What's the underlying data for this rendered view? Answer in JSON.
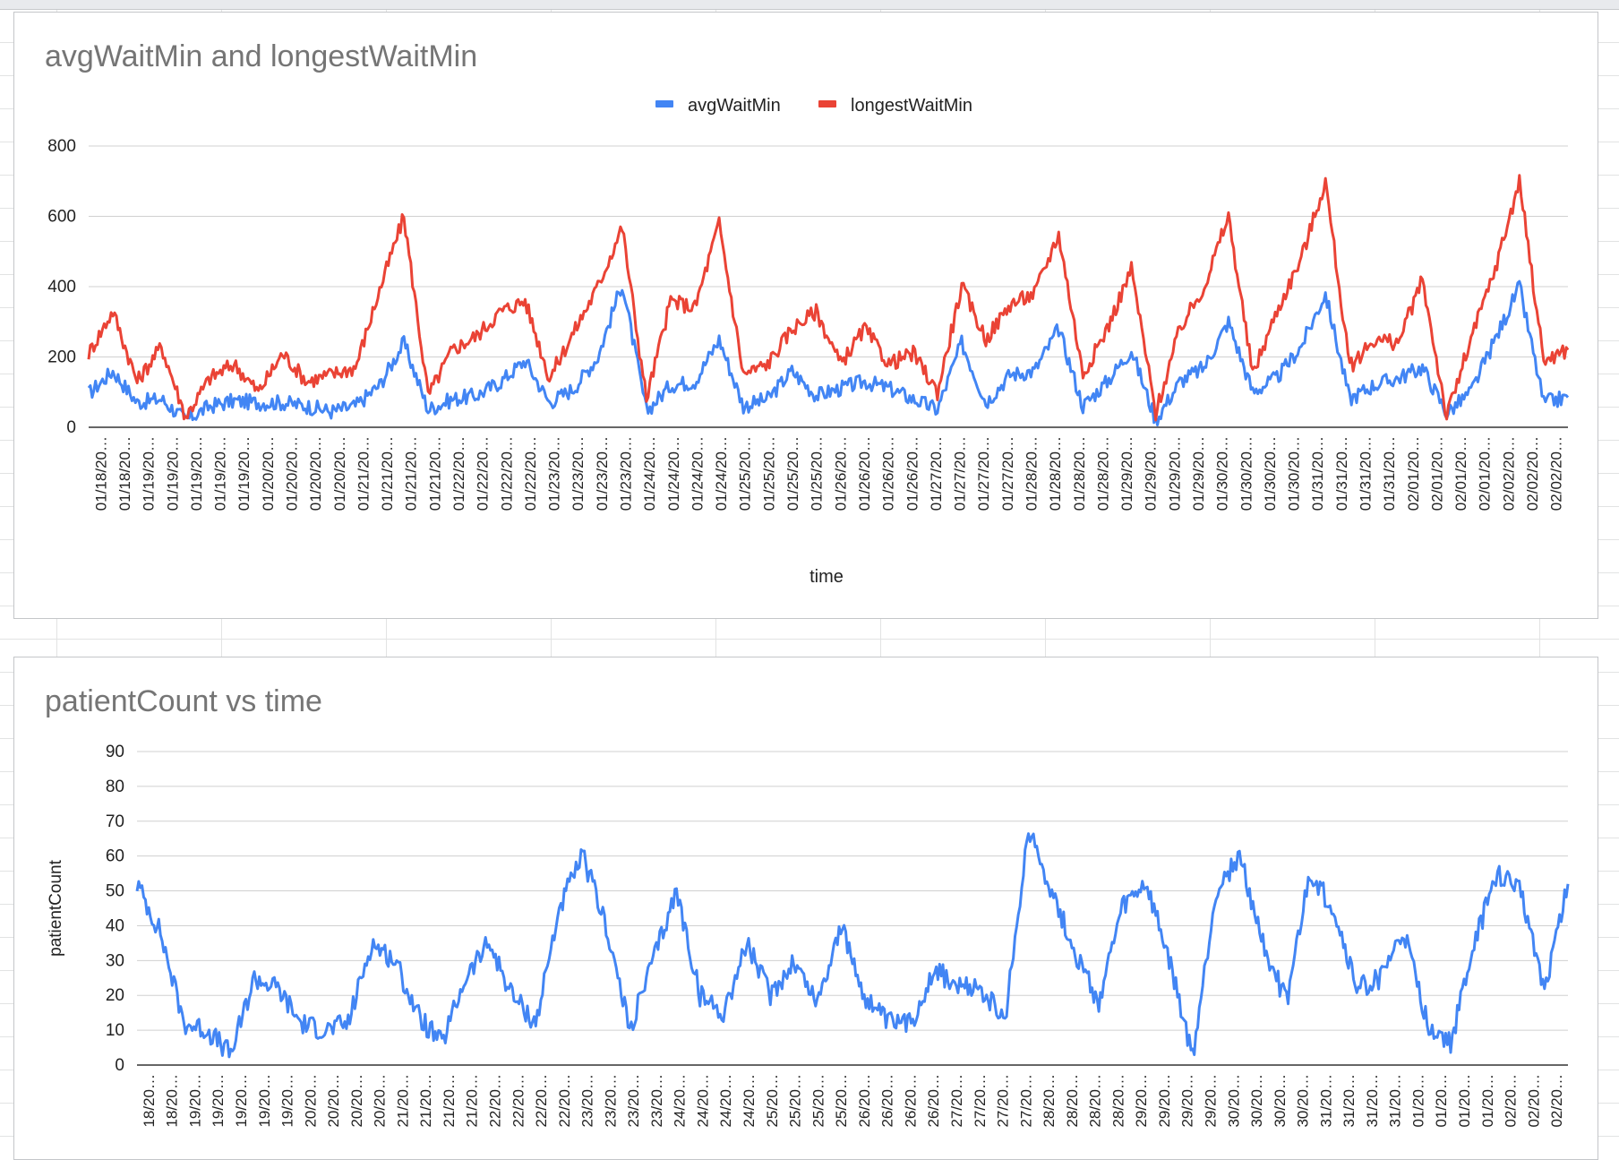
{
  "chart_data": [
    {
      "type": "line",
      "title": "avgWaitMin and longestWaitMin",
      "xlabel": "time",
      "ylabel": "",
      "ylim": [
        0,
        800
      ],
      "yticks": [
        0,
        200,
        400,
        600,
        800
      ],
      "legend": "top-center",
      "grid": true,
      "x_tick_labels": [
        "01/18/20…",
        "01/18/20…",
        "01/19/20…",
        "01/19/20…",
        "01/19/20…",
        "01/19/20…",
        "01/19/20…",
        "01/20/20…",
        "01/20/20…",
        "01/20/20…",
        "01/20/20…",
        "01/21/20…",
        "01/21/20…",
        "01/21/20…",
        "01/21/20…",
        "01/22/20…",
        "01/22/20…",
        "01/22/20…",
        "01/22/20…",
        "01/23/20…",
        "01/23/20…",
        "01/23/20…",
        "01/23/20…",
        "01/24/20…",
        "01/24/20…",
        "01/24/20…",
        "01/24/20…",
        "01/25/20…",
        "01/25/20…",
        "01/25/20…",
        "01/25/20…",
        "01/26/20…",
        "01/26/20…",
        "01/26/20…",
        "01/26/20…",
        "01/27/20…",
        "01/27/20…",
        "01/27/20…",
        "01/27/20…",
        "01/28/20…",
        "01/28/20…",
        "01/28/20…",
        "01/28/20…",
        "01/29/20…",
        "01/29/20…",
        "01/29/20…",
        "01/29/20…",
        "01/30/20…",
        "01/30/20…",
        "01/30/20…",
        "01/30/20…",
        "01/31/20…",
        "01/31/20…",
        "01/31/20…",
        "01/31/20…",
        "02/01/20…",
        "02/01/20…",
        "02/01/20…",
        "02/01/20…",
        "02/02/20…",
        "02/02/20…",
        "02/02/20…"
      ],
      "x": [
        "01/18",
        "01/18",
        "01/19",
        "01/19",
        "01/19",
        "01/19",
        "01/19",
        "01/20",
        "01/20",
        "01/20",
        "01/20",
        "01/21",
        "01/21",
        "01/21",
        "01/21",
        "01/22",
        "01/22",
        "01/22",
        "01/22",
        "01/23",
        "01/23",
        "01/23",
        "01/23",
        "01/24",
        "01/24",
        "01/24",
        "01/24",
        "01/25",
        "01/25",
        "01/25",
        "01/25",
        "01/26",
        "01/26",
        "01/26",
        "01/26",
        "01/27",
        "01/27",
        "01/27",
        "01/27",
        "01/28",
        "01/28",
        "01/28",
        "01/28",
        "01/29",
        "01/29",
        "01/29",
        "01/29",
        "01/30",
        "01/30",
        "01/30",
        "01/30",
        "01/31",
        "01/31",
        "01/31",
        "01/31",
        "02/01",
        "02/01",
        "02/01",
        "02/01",
        "02/02",
        "02/02",
        "02/02"
      ],
      "series": [
        {
          "name": "avgWaitMin",
          "color": "#4285f4",
          "values": [
            95,
            160,
            70,
            80,
            20,
            60,
            75,
            70,
            70,
            60,
            45,
            60,
            120,
            240,
            50,
            80,
            90,
            130,
            190,
            70,
            110,
            200,
            410,
            45,
            120,
            130,
            250,
            60,
            80,
            160,
            90,
            110,
            130,
            110,
            80,
            50,
            240,
            70,
            150,
            160,
            280,
            60,
            130,
            220,
            20,
            130,
            170,
            300,
            100,
            140,
            230,
            380,
            80,
            120,
            140,
            170,
            40,
            100,
            250,
            400,
            70,
            85
          ]
        },
        {
          "name": "longestWaitMin",
          "color": "#ea4335",
          "values": [
            210,
            330,
            130,
            230,
            30,
            140,
            180,
            100,
            210,
            130,
            150,
            170,
            390,
            600,
            90,
            220,
            260,
            330,
            360,
            140,
            270,
            400,
            570,
            80,
            360,
            340,
            580,
            150,
            180,
            280,
            330,
            180,
            280,
            180,
            210,
            100,
            400,
            250,
            350,
            380,
            550,
            150,
            280,
            450,
            40,
            280,
            400,
            600,
            150,
            330,
            480,
            700,
            170,
            250,
            240,
            420,
            30,
            250,
            450,
            700,
            190,
            220
          ]
        }
      ]
    },
    {
      "type": "line",
      "title": "patientCount vs time",
      "xlabel": "",
      "ylabel": "patientCount",
      "ylim": [
        0,
        90
      ],
      "yticks": [
        0,
        10,
        20,
        30,
        40,
        50,
        60,
        70,
        80,
        90
      ],
      "grid": true,
      "x_tick_labels": [
        "18/20…",
        "18/20…",
        "19/20…",
        "19/20…",
        "19/20…",
        "19/20…",
        "19/20…",
        "20/20…",
        "20/20…",
        "20/20…",
        "20/20…",
        "21/20…",
        "21/20…",
        "21/20…",
        "21/20…",
        "22/20…",
        "22/20…",
        "22/20…",
        "22/20…",
        "23/20…",
        "23/20…",
        "23/20…",
        "23/20…",
        "24/20…",
        "24/20…",
        "24/20…",
        "24/20…",
        "25/20…",
        "25/20…",
        "25/20…",
        "25/20…",
        "26/20…",
        "26/20…",
        "26/20…",
        "26/20…",
        "27/20…",
        "27/20…",
        "27/20…",
        "27/20…",
        "28/20…",
        "28/20…",
        "28/20…",
        "28/20…",
        "29/20…",
        "29/20…",
        "29/20…",
        "29/20…",
        "30/20…",
        "30/20…",
        "30/20…",
        "30/20…",
        "31/20…",
        "31/20…",
        "31/20…",
        "31/20…",
        "01/20…",
        "01/20…",
        "01/20…",
        "01/20…",
        "02/20…",
        "02/20…",
        "02/20…"
      ],
      "series": [
        {
          "name": "patientCount",
          "color": "#4285f4",
          "values": [
            52,
            38,
            12,
            10,
            3,
            25,
            22,
            12,
            10,
            12,
            35,
            30,
            14,
            6,
            25,
            35,
            20,
            12,
            45,
            60,
            40,
            10,
            30,
            50,
            20,
            15,
            35,
            20,
            30,
            18,
            40,
            20,
            12,
            12,
            28,
            22,
            22,
            12,
            68,
            50,
            32,
            18,
            45,
            52,
            30,
            2,
            50,
            60,
            35,
            18,
            55,
            45,
            22,
            25,
            38,
            12,
            6,
            35,
            55,
            50,
            22,
            52
          ]
        }
      ]
    }
  ]
}
